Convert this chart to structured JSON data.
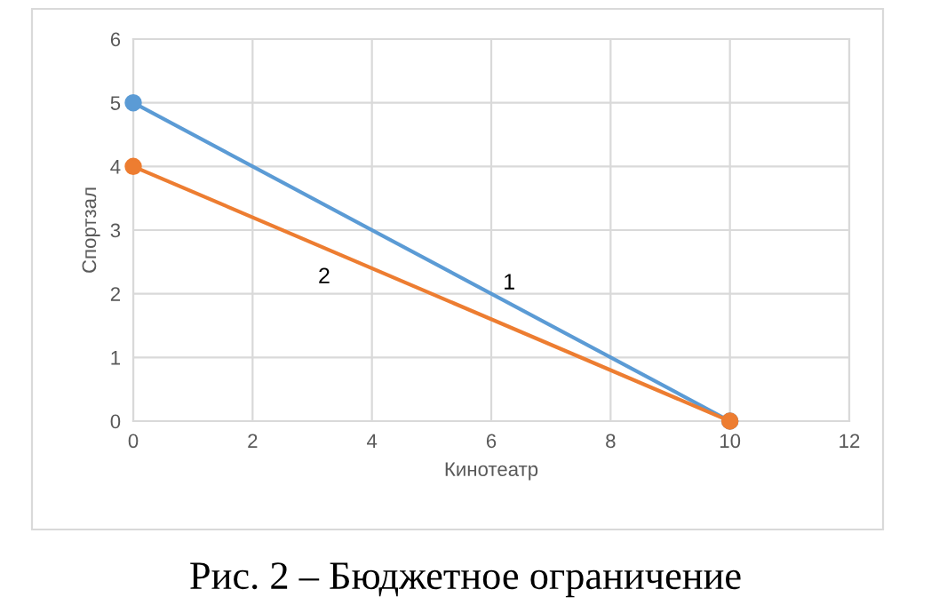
{
  "chart_data": {
    "type": "line",
    "xlabel": "Кинотеатр",
    "ylabel": "Спортзал",
    "x": [
      0,
      10
    ],
    "series": [
      {
        "name": "1",
        "color": "#5b9bd5",
        "values": [
          5,
          0
        ]
      },
      {
        "name": "2",
        "color": "#ed7d31",
        "values": [
          4,
          0
        ]
      }
    ],
    "xlim": [
      0,
      12
    ],
    "xticks": [
      0,
      2,
      4,
      6,
      8,
      10,
      12
    ],
    "ylim": [
      0,
      6
    ],
    "yticks": [
      0,
      1,
      2,
      3,
      4,
      5,
      6
    ],
    "grid": true,
    "marker": "circle",
    "line_style": "solid",
    "annotations": [
      "Рис. 2 – Бюджетное ограничение"
    ]
  }
}
